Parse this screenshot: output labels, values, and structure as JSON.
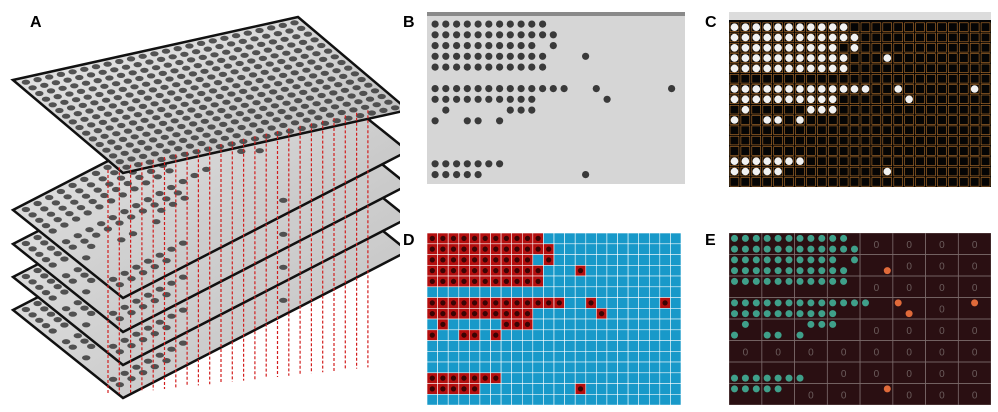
{
  "panels": {
    "a": {
      "label": "A"
    },
    "b": {
      "label": "B"
    },
    "c": {
      "label": "C"
    },
    "d": {
      "label": "D"
    },
    "e": {
      "label": "E"
    }
  },
  "plate": {
    "rows": 16,
    "cols": 24
  },
  "grid_values": {
    "zero": "0",
    "one": "1"
  },
  "colors": {
    "plate_top": "#cfcfcf",
    "plate_edge": "#111111",
    "dot": "#3a3a3a",
    "guide_line": "#d21f1f",
    "photo_bg": "#d6d6d6",
    "binary_bg": "#050505",
    "binary_dot": "#f2f2f2",
    "grid_orange": "#b8742e",
    "score_red": "#b40f0f",
    "score_blue": "#1899c9",
    "score_grid": "#ffffff",
    "overlay_bg": "#2a0f12",
    "overlay_green": "#3fa08a",
    "overlay_orange": "#e06a3a",
    "overlay_grid": "#7a6a6a",
    "overlay_text": "#6b5c5c"
  },
  "colonies": [
    [
      1,
      1,
      1,
      1,
      1,
      1,
      1,
      1,
      1,
      1,
      1,
      0,
      0,
      0,
      0,
      0,
      0,
      0,
      0,
      0,
      0,
      0,
      0,
      0
    ],
    [
      1,
      1,
      1,
      1,
      1,
      1,
      1,
      1,
      1,
      1,
      1,
      1,
      0,
      0,
      0,
      0,
      0,
      0,
      0,
      0,
      0,
      0,
      0,
      0
    ],
    [
      1,
      1,
      1,
      1,
      1,
      1,
      1,
      1,
      1,
      1,
      0,
      1,
      0,
      0,
      0,
      0,
      0,
      0,
      0,
      0,
      0,
      0,
      0,
      0
    ],
    [
      1,
      1,
      1,
      1,
      1,
      1,
      1,
      1,
      1,
      1,
      1,
      0,
      0,
      0,
      1,
      0,
      0,
      0,
      0,
      0,
      0,
      0,
      0,
      0
    ],
    [
      1,
      1,
      1,
      1,
      1,
      1,
      1,
      1,
      1,
      1,
      1,
      0,
      0,
      0,
      0,
      0,
      0,
      0,
      0,
      0,
      0,
      0,
      0,
      0
    ],
    [
      0,
      0,
      0,
      0,
      0,
      0,
      0,
      0,
      0,
      0,
      0,
      0,
      0,
      0,
      0,
      0,
      0,
      0,
      0,
      0,
      0,
      0,
      0,
      0
    ],
    [
      1,
      1,
      1,
      1,
      1,
      1,
      1,
      1,
      1,
      1,
      1,
      1,
      1,
      0,
      0,
      1,
      0,
      0,
      0,
      0,
      0,
      0,
      1,
      0
    ],
    [
      1,
      1,
      1,
      1,
      1,
      1,
      1,
      1,
      1,
      1,
      0,
      0,
      0,
      0,
      0,
      0,
      1,
      0,
      0,
      0,
      0,
      0,
      0,
      0
    ],
    [
      0,
      1,
      0,
      0,
      0,
      0,
      0,
      1,
      1,
      1,
      0,
      0,
      0,
      0,
      0,
      0,
      0,
      0,
      0,
      0,
      0,
      0,
      0,
      0
    ],
    [
      1,
      0,
      0,
      1,
      1,
      0,
      1,
      0,
      0,
      0,
      0,
      0,
      0,
      0,
      0,
      0,
      0,
      0,
      0,
      0,
      0,
      0,
      0,
      0
    ],
    [
      0,
      0,
      0,
      0,
      0,
      0,
      0,
      0,
      0,
      0,
      0,
      0,
      0,
      0,
      0,
      0,
      0,
      0,
      0,
      0,
      0,
      0,
      0,
      0
    ],
    [
      0,
      0,
      0,
      0,
      0,
      0,
      0,
      0,
      0,
      0,
      0,
      0,
      0,
      0,
      0,
      0,
      0,
      0,
      0,
      0,
      0,
      0,
      0,
      0
    ],
    [
      0,
      0,
      0,
      0,
      0,
      0,
      0,
      0,
      0,
      0,
      0,
      0,
      0,
      0,
      0,
      0,
      0,
      0,
      0,
      0,
      0,
      0,
      0,
      0
    ],
    [
      1,
      1,
      1,
      1,
      1,
      1,
      1,
      0,
      0,
      0,
      0,
      0,
      0,
      0,
      0,
      0,
      0,
      0,
      0,
      0,
      0,
      0,
      0,
      0
    ],
    [
      1,
      1,
      1,
      1,
      1,
      0,
      0,
      0,
      0,
      0,
      0,
      0,
      0,
      0,
      1,
      0,
      0,
      0,
      0,
      0,
      0,
      0,
      0,
      0
    ],
    [
      0,
      0,
      0,
      0,
      0,
      0,
      0,
      0,
      0,
      0,
      0,
      0,
      0,
      0,
      0,
      0,
      0,
      0,
      0,
      0,
      0,
      0,
      0,
      0
    ]
  ]
}
